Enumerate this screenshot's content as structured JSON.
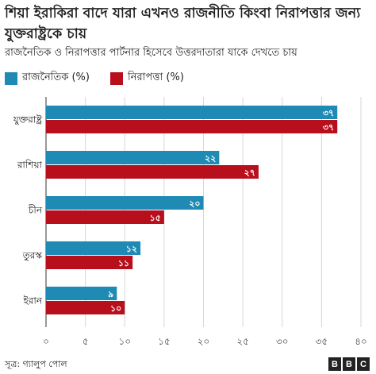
{
  "chart_data": {
    "type": "bar",
    "orientation": "horizontal",
    "title": "শিয়া ইরাকিরা বাদে যারা এখনও রাজনীতি কিংবা নিরাপত্তার জন্য যুক্তরাষ্ট্রকে চায়",
    "subtitle": "রাজনৈতিক ও নিরাপত্তার পার্টনার হিসেবে উত্তরদাতারা যাকে দেখতে চায়",
    "categories": [
      "যুক্তরাষ্ট্র",
      "রাশিয়া",
      "চীন",
      "তুরস্ক",
      "ইরান"
    ],
    "series": [
      {
        "name": "রাজনৈতিক (%)",
        "color": "#1f8bb5",
        "values": [
          37,
          22,
          20,
          12,
          9
        ],
        "labels": [
          "৩৭",
          "২২",
          "২০",
          "১২",
          "৯"
        ]
      },
      {
        "name": "নিরাপত্তা (%)",
        "color": "#b80f1c",
        "values": [
          37,
          27,
          15,
          11,
          10
        ],
        "labels": [
          "৩৭",
          "২৭",
          "১৫",
          "১১",
          "১০"
        ]
      }
    ],
    "xlim": [
      0,
      40
    ],
    "x_ticks": [
      0,
      5,
      10,
      15,
      20,
      25,
      30,
      35,
      40
    ],
    "x_tick_labels": [
      "০",
      "৫",
      "১০",
      "১৫",
      "২০",
      "২৫",
      "৩০",
      "৩৫",
      "৪০"
    ],
    "grid": true,
    "legend_position": "top-left"
  },
  "source": "সূত্র: গ্যালুপ পোল",
  "brand": {
    "letters": [
      "B",
      "B",
      "C"
    ]
  }
}
